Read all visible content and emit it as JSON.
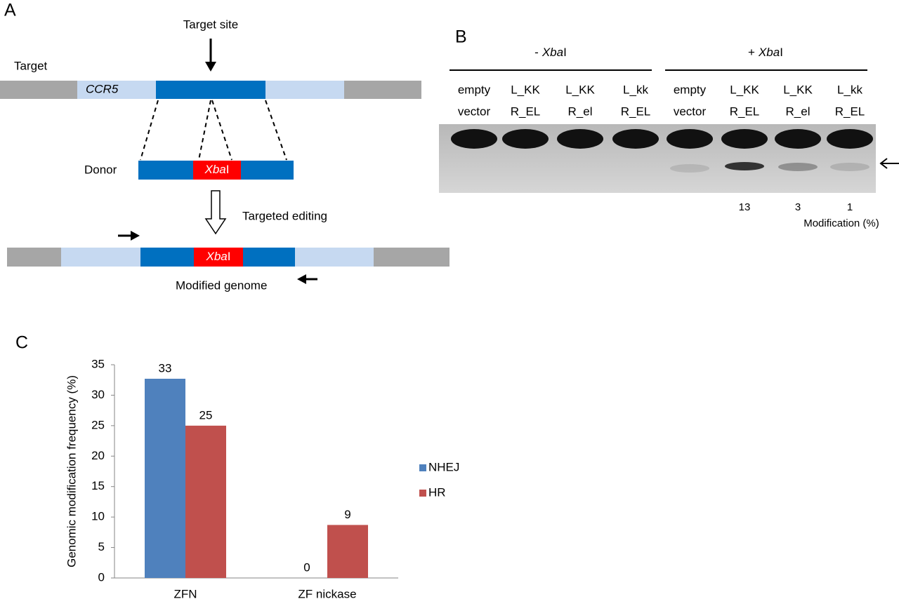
{
  "panel_a": {
    "letter": "A",
    "target_site": "Target site",
    "target": "Target",
    "gene": "CCR5",
    "donor": "Donor",
    "donor_site": [
      "Xba",
      "I"
    ],
    "editing": "Targeted editing",
    "modified_site": [
      "Xba",
      "I"
    ],
    "modified": "Modified genome"
  },
  "panel_b": {
    "letter": "B",
    "minus": [
      "-",
      "Xba",
      "I"
    ],
    "plus": [
      "+",
      "Xba",
      "I"
    ],
    "lanes": [
      [
        "empty",
        "vector"
      ],
      [
        "L_KK",
        "R_EL"
      ],
      [
        "L_KK",
        "R_el"
      ],
      [
        "L_kk",
        "R_EL"
      ],
      [
        "empty",
        "vector"
      ],
      [
        "L_KK",
        "R_EL"
      ],
      [
        "L_KK",
        "R_el"
      ],
      [
        "L_kk",
        "R_EL"
      ]
    ],
    "modification": [
      "13",
      "3",
      "1"
    ],
    "modification_label": "Modification (%)"
  },
  "panel_c": {
    "letter": "C"
  },
  "chart_data": {
    "type": "bar",
    "ylabel": "Genomic modification frequency (%)",
    "categories": [
      "ZFN",
      "ZF nickase"
    ],
    "series": [
      {
        "name": "NHEJ",
        "color": "#4f81bd",
        "values": [
          32.7,
          0
        ],
        "value_labels": [
          "33",
          "0"
        ]
      },
      {
        "name": "HR",
        "color": "#c0504d",
        "values": [
          25,
          8.7
        ],
        "value_labels": [
          "25",
          "9"
        ]
      }
    ],
    "ylim": [
      0,
      35
    ],
    "yticks": [
      0,
      5,
      10,
      15,
      20,
      25,
      30,
      35
    ],
    "grid": false,
    "legend": "right"
  }
}
